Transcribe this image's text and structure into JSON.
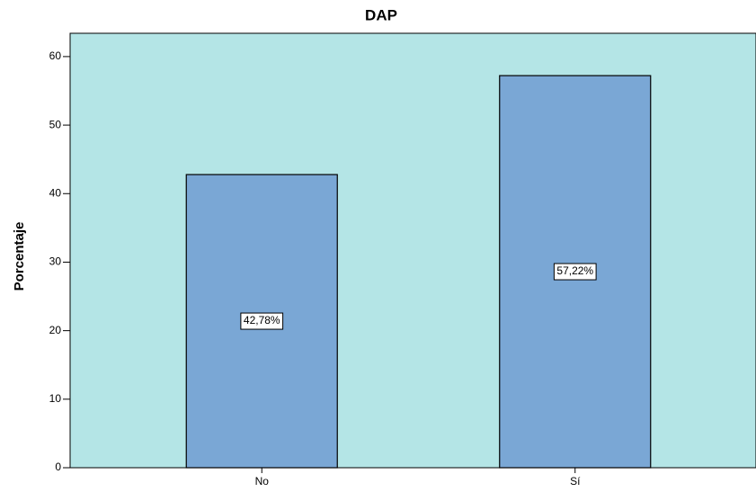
{
  "chart_data": {
    "type": "bar",
    "title": "DAP",
    "y_label": "Porcentaje",
    "categories": [
      "No",
      "Sí"
    ],
    "values": [
      42.78,
      57.22
    ],
    "value_labels": [
      "42,78%",
      "57,22%"
    ],
    "color": "#7aa7d5",
    "background": "#b4e5e6",
    "ylim": [
      0,
      63.4
    ],
    "yticks": [
      0,
      10,
      20,
      30,
      40,
      50,
      60
    ]
  }
}
